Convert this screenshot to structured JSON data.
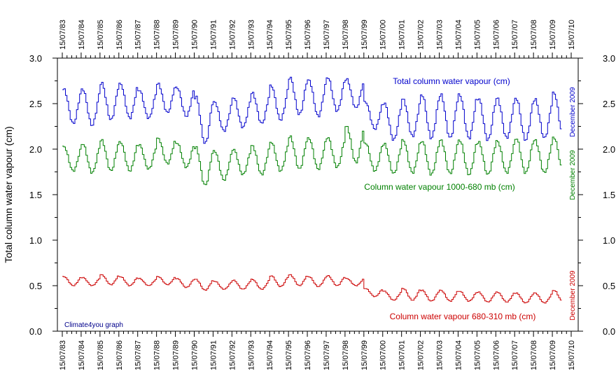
{
  "chart_data": {
    "type": "line",
    "ylabel": "Total column water vapour (cm)",
    "ylim": [
      0,
      3
    ],
    "yticks": [
      "0.0",
      "0.5",
      "1.0",
      "1.5",
      "2.0",
      "2.5",
      "3.0"
    ],
    "ytick_values": [
      0,
      0.5,
      1.0,
      1.5,
      2.0,
      2.5,
      3.0
    ],
    "xlim": [
      "1983-07-15",
      "2010-07-15"
    ],
    "xticks": [
      "15/07/83",
      "15/07/84",
      "15/07/85",
      "15/07/86",
      "15/07/87",
      "15/07/88",
      "15/07/89",
      "15/07/90",
      "15/07/91",
      "15/07/92",
      "15/07/93",
      "15/07/94",
      "15/07/95",
      "15/07/96",
      "15/07/97",
      "15/07/98",
      "15/07/99",
      "15/07/00",
      "15/07/01",
      "15/07/02",
      "15/07/03",
      "15/07/04",
      "15/07/05",
      "15/07/06",
      "15/07/07",
      "15/07/08",
      "15/07/09",
      "15/07/10"
    ],
    "credit": "Climate4you graph",
    "series": [
      {
        "name": "Total column water vapour (cm)",
        "color": "#0000cc",
        "end_label": "December 2009",
        "monthly_start": "1983-07",
        "annual_max": [
          2.66,
          2.66,
          2.73,
          2.72,
          2.65,
          2.72,
          2.68,
          2.58,
          2.52,
          2.57,
          2.62,
          2.7,
          2.79,
          2.76,
          2.79,
          2.77,
          2.52,
          2.51,
          2.55,
          2.6,
          2.6,
          2.6,
          2.56,
          2.56,
          2.56,
          2.55,
          2.62
        ],
        "annual_min": [
          2.28,
          2.26,
          2.32,
          2.34,
          2.34,
          2.4,
          2.36,
          2.06,
          2.2,
          2.24,
          2.28,
          2.32,
          2.38,
          2.36,
          2.42,
          2.45,
          2.22,
          2.1,
          2.14,
          2.12,
          2.12,
          2.12,
          2.1,
          2.12,
          2.1,
          2.12,
          2.15
        ]
      },
      {
        "name": "Column water vapour 1000-680 mb (cm)",
        "color": "#008000",
        "end_label": "December 2009",
        "monthly_start": "1983-07",
        "annual_max": [
          2.03,
          2.06,
          2.1,
          2.08,
          2.05,
          2.12,
          2.07,
          2.02,
          1.98,
          2.0,
          2.04,
          2.08,
          2.14,
          2.12,
          2.13,
          2.25,
          2.07,
          2.06,
          2.1,
          2.09,
          2.1,
          2.1,
          2.08,
          2.09,
          2.12,
          2.1,
          2.13
        ],
        "annual_min": [
          1.76,
          1.74,
          1.76,
          1.76,
          1.78,
          1.84,
          1.8,
          1.6,
          1.66,
          1.72,
          1.72,
          1.76,
          1.78,
          1.78,
          1.8,
          1.85,
          1.76,
          1.73,
          1.74,
          1.72,
          1.73,
          1.72,
          1.72,
          1.74,
          1.74,
          1.74,
          1.76
        ]
      },
      {
        "name": "Column water vapour 680-310 mb (cm)",
        "color": "#cc0000",
        "end_label": "December 2009",
        "monthly_start": "1983-07",
        "annual_max": [
          0.6,
          0.59,
          0.62,
          0.6,
          0.58,
          0.6,
          0.58,
          0.57,
          0.55,
          0.56,
          0.57,
          0.61,
          0.62,
          0.6,
          0.61,
          0.58,
          0.47,
          0.44,
          0.47,
          0.45,
          0.45,
          0.44,
          0.43,
          0.43,
          0.42,
          0.42,
          0.45
        ],
        "annual_min": [
          0.5,
          0.5,
          0.51,
          0.5,
          0.5,
          0.51,
          0.48,
          0.45,
          0.46,
          0.46,
          0.46,
          0.49,
          0.5,
          0.49,
          0.5,
          0.5,
          0.38,
          0.34,
          0.34,
          0.33,
          0.33,
          0.33,
          0.32,
          0.32,
          0.31,
          0.31,
          0.32
        ]
      }
    ]
  }
}
